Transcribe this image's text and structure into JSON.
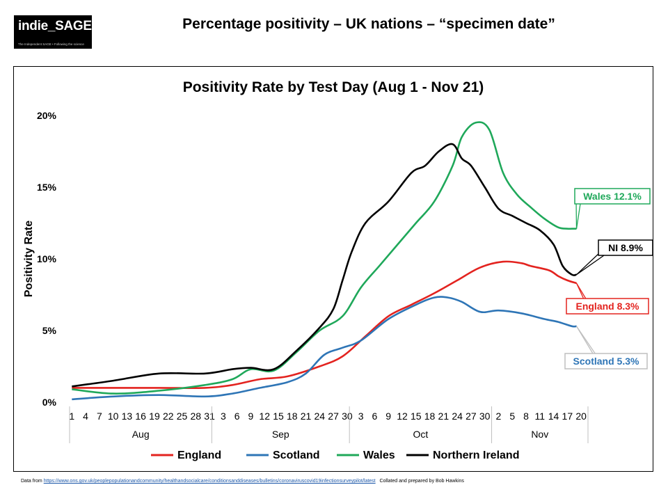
{
  "logo": {
    "text": "indie_SAGE",
    "tagline": "The Independent SAGE • Following the science"
  },
  "slide_title": "Percentage positivity – UK nations – “specimen date”",
  "footer": {
    "data_from_label": "Data from",
    "url_text": "https://www.ons.gov.uk/peoplepopulationandcommunity/healthandsocialcare/conditionsanddiseases/bulletins/coronaviruscovid19infectionsurveypilot/latest",
    "credit": "Collated and prepared by Bob Hawkins"
  },
  "chart_data": {
    "type": "line",
    "title": "Positivity Rate by Test Day (Aug 1 - Nov 21)",
    "ylabel": "Positivity Rate",
    "xlabel": "",
    "ylim": [
      0,
      20
    ],
    "yticks": [
      "0%",
      "5%",
      "10%",
      "15%",
      "20%"
    ],
    "x_tick_labels": [
      "1",
      "4",
      "7",
      "10",
      "13",
      "16",
      "19",
      "22",
      "25",
      "28",
      "31",
      "3",
      "6",
      "9",
      "12",
      "15",
      "18",
      "21",
      "24",
      "27",
      "30",
      "3",
      "6",
      "9",
      "12",
      "15",
      "18",
      "21",
      "24",
      "27",
      "30",
      "2",
      "5",
      "8",
      "11",
      "14",
      "17",
      "20"
    ],
    "months": [
      {
        "name": "Aug",
        "start_day": 1,
        "end_day": 31
      },
      {
        "name": "Sep",
        "start_day": 32,
        "end_day": 61
      },
      {
        "name": "Oct",
        "start_day": 62,
        "end_day": 92
      },
      {
        "name": "Nov",
        "start_day": 93,
        "end_day": 113
      }
    ],
    "legend_position": "bottom",
    "series": [
      {
        "name": "England",
        "color": "#e3231f",
        "x": [
          1,
          10,
          20,
          30,
          36,
          42,
          48,
          55,
          60,
          65,
          70,
          75,
          80,
          85,
          90,
          95,
          99,
          101,
          105,
          107,
          109,
          111
        ],
        "y": [
          1.0,
          1.0,
          1.0,
          1.0,
          1.2,
          1.6,
          1.8,
          2.5,
          3.2,
          4.6,
          6.0,
          6.8,
          7.6,
          8.5,
          9.4,
          9.8,
          9.7,
          9.5,
          9.2,
          8.8,
          8.5,
          8.3
        ]
      },
      {
        "name": "Scotland",
        "color": "#2e75b6",
        "x": [
          1,
          10,
          20,
          30,
          36,
          42,
          48,
          52,
          56,
          60,
          64,
          70,
          76,
          80,
          83,
          86,
          90,
          94,
          99,
          104,
          107,
          110,
          111
        ],
        "y": [
          0.2,
          0.4,
          0.5,
          0.4,
          0.6,
          1.0,
          1.4,
          2.0,
          3.3,
          3.8,
          4.3,
          5.8,
          6.8,
          7.3,
          7.3,
          7.0,
          6.3,
          6.4,
          6.2,
          5.8,
          5.6,
          5.3,
          5.3
        ]
      },
      {
        "name": "Wales",
        "color": "#1fa85a",
        "x": [
          1,
          10,
          20,
          30,
          36,
          40,
          45,
          50,
          55,
          60,
          64,
          68,
          72,
          76,
          80,
          84,
          86,
          89,
          92,
          95,
          98,
          101,
          104,
          107,
          109,
          110,
          111
        ],
        "y": [
          0.9,
          0.6,
          0.8,
          1.2,
          1.6,
          2.3,
          2.2,
          3.5,
          5.0,
          6.0,
          8.0,
          9.5,
          11.0,
          12.5,
          14.0,
          16.5,
          18.5,
          19.5,
          19.0,
          16.0,
          14.5,
          13.6,
          12.8,
          12.2,
          12.1,
          12.1,
          12.1
        ]
      },
      {
        "name": "Northern Ireland",
        "color": "#000000",
        "x": [
          1,
          10,
          20,
          30,
          36,
          40,
          45,
          50,
          55,
          58,
          60,
          62,
          65,
          70,
          75,
          78,
          81,
          84,
          86,
          88,
          91,
          94,
          97,
          100,
          103,
          106,
          108,
          110,
          111
        ],
        "y": [
          1.1,
          1.5,
          2.0,
          2.0,
          2.3,
          2.4,
          2.3,
          3.6,
          5.2,
          6.5,
          8.5,
          10.5,
          12.5,
          14.0,
          16.0,
          16.5,
          17.5,
          18.0,
          17.0,
          16.5,
          15.0,
          13.5,
          13.0,
          12.5,
          12.0,
          11.0,
          9.5,
          8.9,
          8.9
        ]
      }
    ],
    "annotations": [
      {
        "series": "Wales",
        "text": "Wales 12.1%",
        "color": "#1fa85a"
      },
      {
        "series": "Northern Ireland",
        "text": "NI 8.9%",
        "color": "#000000"
      },
      {
        "series": "England",
        "text": "England 8.3%",
        "color": "#e3231f"
      },
      {
        "series": "Scotland",
        "text": "Scotland 5.3%",
        "color": "#2e75b6"
      }
    ]
  }
}
